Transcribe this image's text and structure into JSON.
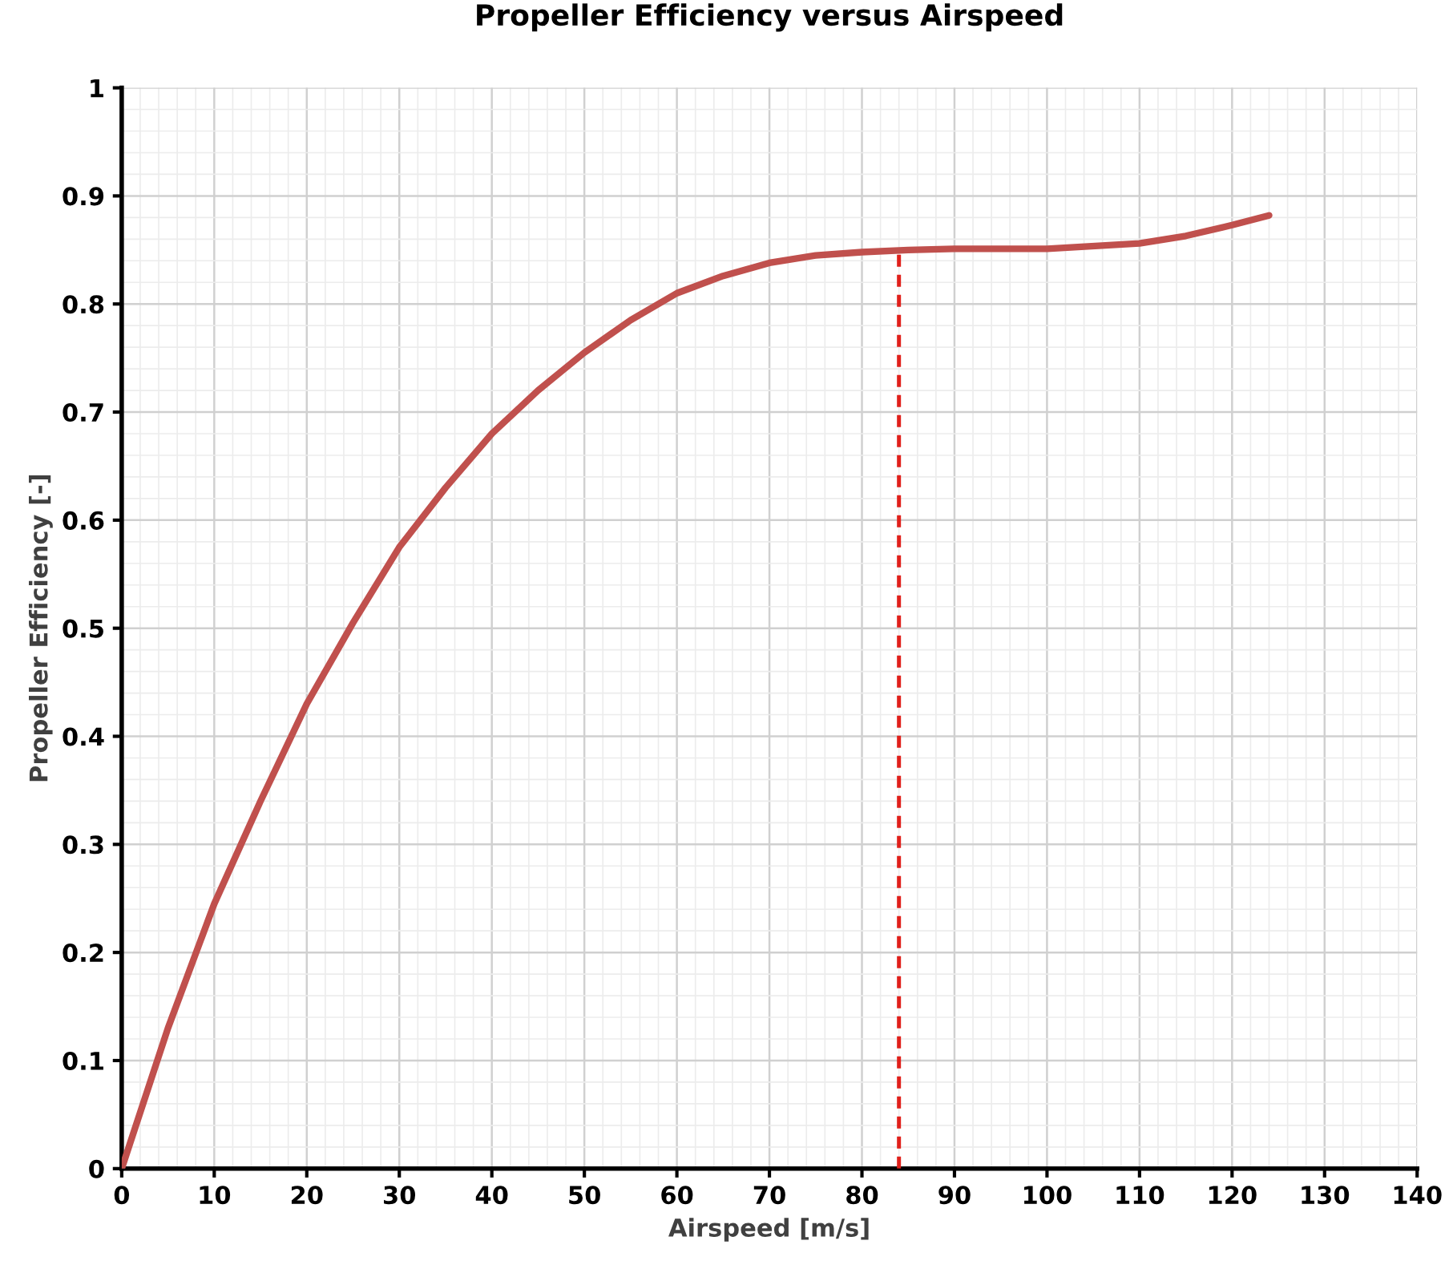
{
  "chart_data": {
    "type": "line",
    "title": "Propeller Efficiency versus Airspeed",
    "xlabel": "Airspeed [m/s]",
    "ylabel": "Propeller Efficiency [-]",
    "xlim": [
      0,
      140
    ],
    "ylim": [
      0,
      1
    ],
    "xticks": [
      0,
      10,
      20,
      30,
      40,
      50,
      60,
      70,
      80,
      90,
      100,
      110,
      120,
      130,
      140
    ],
    "yticks": [
      0,
      0.1,
      0.2,
      0.3,
      0.4,
      0.5,
      0.6,
      0.7,
      0.8,
      0.9,
      1
    ],
    "grid": true,
    "marker": "none",
    "series": [
      {
        "color": "#c0504d",
        "line_style": "solid",
        "x": [
          0,
          5,
          10,
          15,
          20,
          25,
          30,
          35,
          40,
          45,
          50,
          55,
          60,
          65,
          70,
          75,
          80,
          85,
          90,
          100,
          110,
          115,
          120,
          124
        ],
        "values": [
          0,
          0.13,
          0.245,
          0.34,
          0.43,
          0.505,
          0.575,
          0.63,
          0.68,
          0.72,
          0.755,
          0.785,
          0.81,
          0.826,
          0.838,
          0.845,
          0.848,
          0.85,
          0.851,
          0.851,
          0.856,
          0.863,
          0.873,
          0.882
        ]
      },
      {
        "color": "#e0201b",
        "line_style": "dashed",
        "x": [
          84,
          84
        ],
        "values": [
          0,
          0.85
        ]
      }
    ]
  }
}
